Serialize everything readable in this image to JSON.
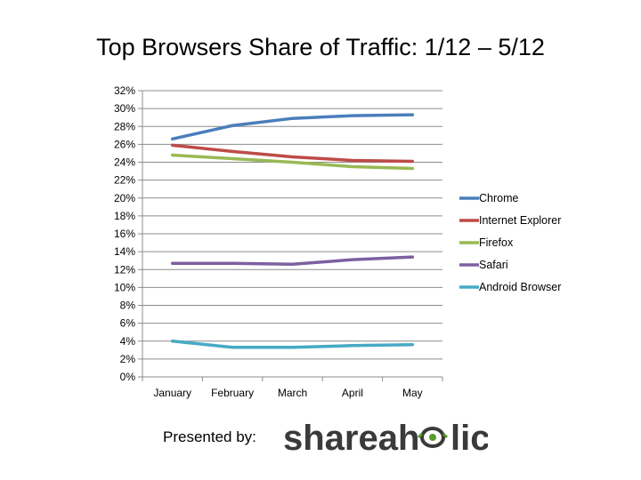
{
  "title": "Top Browsers Share of Traffic: 1/12 – 5/12",
  "presented_by": "Presented by:",
  "logo": {
    "left": "shareah",
    "right": "lic",
    "icon": "eye-o-icon",
    "accent": "#5a9a2e"
  },
  "chart_data": {
    "type": "line",
    "title": "Top Browsers Share of Traffic: 1/12 – 5/12",
    "xlabel": "",
    "ylabel": "",
    "categories": [
      "January",
      "February",
      "March",
      "April",
      "May"
    ],
    "ylim": [
      0,
      32
    ],
    "yticks": [
      "0%",
      "2%",
      "4%",
      "6%",
      "8%",
      "10%",
      "12%",
      "14%",
      "16%",
      "18%",
      "20%",
      "22%",
      "24%",
      "26%",
      "28%",
      "30%",
      "32%"
    ],
    "grid": true,
    "legend": "right",
    "series": [
      {
        "name": "Chrome",
        "color": "#4a7ebb",
        "values": [
          26.6,
          28.1,
          28.9,
          29.2,
          29.3
        ]
      },
      {
        "name": "Internet Explorer",
        "color": "#be4b48",
        "values": [
          25.9,
          25.2,
          24.6,
          24.2,
          24.1
        ]
      },
      {
        "name": "Firefox",
        "color": "#98b954",
        "values": [
          24.8,
          24.4,
          24.0,
          23.5,
          23.3
        ]
      },
      {
        "name": "Safari",
        "color": "#7d60a0",
        "values": [
          12.7,
          12.7,
          12.6,
          13.1,
          13.4
        ]
      },
      {
        "name": "Android Browser",
        "color": "#46aac5",
        "values": [
          4.0,
          3.3,
          3.3,
          3.5,
          3.6
        ]
      }
    ]
  }
}
